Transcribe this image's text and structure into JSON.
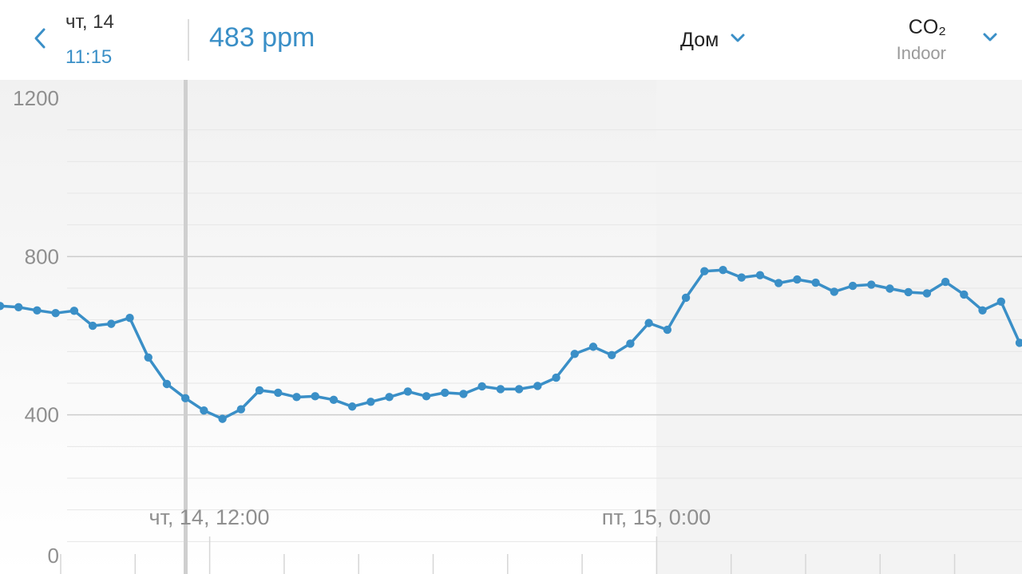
{
  "header": {
    "back_icon": "chevron-left-icon",
    "day": "чт, 14",
    "time": "11:15",
    "reading": "483 ppm",
    "location": "Дом",
    "metric": "CO₂",
    "metric_sub": "Indoor",
    "accent_color": "#3a8fc7"
  },
  "chart_data": {
    "type": "line",
    "title": "",
    "xlabel": "",
    "ylabel": "",
    "ylim": [
      0,
      1200
    ],
    "yticks": [
      {
        "value": 1200,
        "label": "1200"
      },
      {
        "value": 800,
        "label": "800"
      },
      {
        "value": 400,
        "label": "400"
      },
      {
        "value": 0,
        "label": "0"
      }
    ],
    "x_labels": [
      "чт, 14, 12:00",
      "пт, 15, 0:00"
    ],
    "current_time_marker": "11:15",
    "grid": true,
    "line_color": "#3a8fc7",
    "series": [
      {
        "values": [
          675,
          672,
          664,
          657,
          663,
          625,
          630,
          645,
          545,
          478,
          442,
          411,
          390,
          414,
          462,
          456,
          445,
          447,
          438,
          421,
          433,
          445,
          459,
          447,
          456,
          453,
          472,
          465,
          465,
          473,
          494,
          554,
          572,
          551,
          580,
          632,
          615,
          696,
          763,
          766,
          747,
          753,
          733,
          742,
          734,
          711,
          726,
          729,
          719,
          710,
          707,
          736,
          704,
          664,
          686,
          582
        ]
      }
    ]
  }
}
